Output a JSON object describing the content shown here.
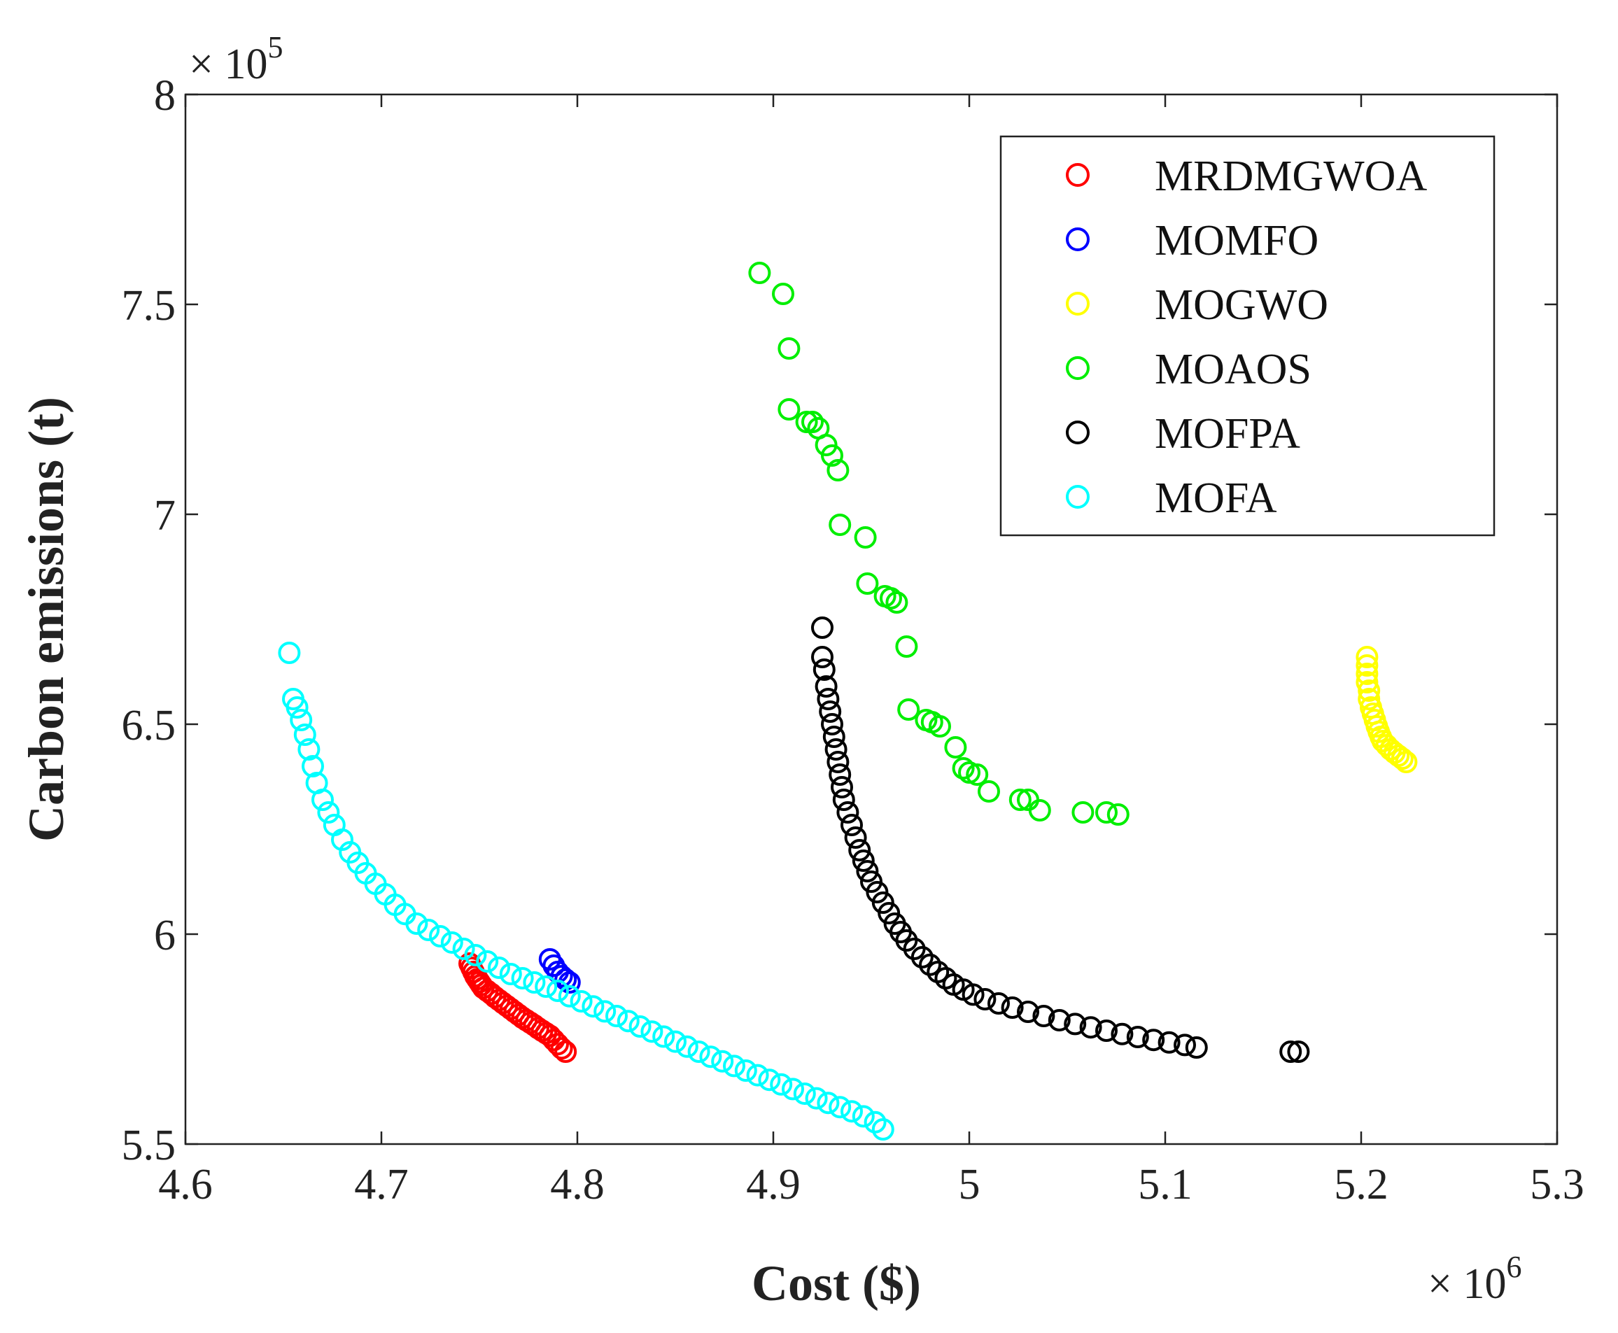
{
  "chart_data": {
    "type": "scatter",
    "title": "",
    "xlabel": "Cost ($)",
    "ylabel": "Carbon emissions (t)",
    "x_exponent_label": "× 10",
    "x_exponent_power": "6",
    "y_exponent_label": "× 10",
    "y_exponent_power": "5",
    "xlim": [
      4.6,
      5.3
    ],
    "ylim": [
      5.5,
      8
    ],
    "xticks": [
      4.6,
      4.7,
      4.8,
      4.9,
      5,
      5.1,
      5.2,
      5.3
    ],
    "yticks": [
      5.5,
      6,
      6.5,
      7,
      7.5,
      8
    ],
    "xtick_labels": [
      "4.6",
      "4.7",
      "4.8",
      "4.9",
      "5",
      "5.1",
      "5.2",
      "5.3"
    ],
    "ytick_labels": [
      "5.5",
      "6",
      "6.5",
      "7",
      "7.5",
      "8"
    ],
    "grid": false,
    "legend_position": "top-right",
    "marker": "open-circle",
    "series": [
      {
        "name": "MRDMGWOA",
        "color": "#ff0000",
        "x": [
          4.745,
          4.746,
          4.747,
          4.748,
          4.749,
          4.75,
          4.751,
          4.752,
          4.754,
          4.756,
          4.758,
          4.76,
          4.762,
          4.764,
          4.766,
          4.768,
          4.77,
          4.772,
          4.774,
          4.776,
          4.778,
          4.78,
          4.782,
          4.784,
          4.786,
          4.788,
          4.79,
          4.792,
          4.794
        ],
        "y": [
          5.93,
          5.92,
          5.91,
          5.9,
          5.893,
          5.886,
          5.879,
          5.872,
          5.865,
          5.858,
          5.85,
          5.843,
          5.836,
          5.829,
          5.822,
          5.815,
          5.808,
          5.801,
          5.795,
          5.789,
          5.783,
          5.776,
          5.77,
          5.764,
          5.758,
          5.748,
          5.738,
          5.728,
          5.72
        ]
      },
      {
        "name": "MOMFO",
        "color": "#0000ff",
        "x": [
          4.786,
          4.788,
          4.79,
          4.792,
          4.794,
          4.796
        ],
        "y": [
          5.94,
          5.925,
          5.91,
          5.9,
          5.892,
          5.885
        ]
      },
      {
        "name": "MOGWO",
        "color": "#ffff00",
        "x": [
          5.203,
          5.203,
          5.203,
          5.203,
          5.204,
          5.204,
          5.205,
          5.206,
          5.207,
          5.208,
          5.209,
          5.21,
          5.211,
          5.213,
          5.215,
          5.217,
          5.219,
          5.221,
          5.223
        ],
        "y": [
          6.66,
          6.64,
          6.62,
          6.6,
          6.58,
          6.56,
          6.54,
          6.525,
          6.51,
          6.495,
          6.482,
          6.47,
          6.46,
          6.45,
          6.44,
          6.432,
          6.425,
          6.418,
          6.41
        ]
      },
      {
        "name": "MOAOS",
        "color": "#00ee00",
        "x": [
          4.893,
          4.905,
          4.908,
          4.908,
          4.917,
          4.92,
          4.923,
          4.927,
          4.93,
          4.933,
          4.934,
          4.947,
          4.948,
          4.957,
          4.96,
          4.963,
          4.968,
          4.969,
          4.978,
          4.981,
          4.985,
          4.993,
          4.997,
          5.0,
          5.004,
          5.01,
          5.026,
          5.03,
          5.036,
          5.058,
          5.07,
          5.076
        ],
        "y": [
          7.575,
          7.525,
          7.395,
          7.25,
          7.22,
          7.22,
          7.205,
          7.165,
          7.14,
          7.105,
          6.975,
          6.945,
          6.835,
          6.805,
          6.8,
          6.79,
          6.685,
          6.535,
          6.51,
          6.505,
          6.495,
          6.445,
          6.395,
          6.385,
          6.38,
          6.34,
          6.32,
          6.32,
          6.295,
          6.29,
          6.29,
          6.285
        ]
      },
      {
        "name": "MOFPA",
        "color": "#000000",
        "x": [
          4.925,
          4.925,
          4.926,
          4.927,
          4.928,
          4.929,
          4.93,
          4.931,
          4.932,
          4.933,
          4.934,
          4.935,
          4.936,
          4.938,
          4.94,
          4.942,
          4.944,
          4.946,
          4.948,
          4.95,
          4.953,
          4.956,
          4.959,
          4.962,
          4.965,
          4.968,
          4.972,
          4.976,
          4.98,
          4.984,
          4.988,
          4.992,
          4.997,
          5.002,
          5.008,
          5.015,
          5.022,
          5.03,
          5.038,
          5.046,
          5.054,
          5.062,
          5.07,
          5.078,
          5.086,
          5.094,
          5.102,
          5.11,
          5.116,
          5.164,
          5.168
        ],
        "y": [
          6.73,
          6.66,
          6.63,
          6.59,
          6.56,
          6.53,
          6.5,
          6.47,
          6.44,
          6.41,
          6.38,
          6.35,
          6.32,
          6.29,
          6.26,
          6.23,
          6.2,
          6.175,
          6.15,
          6.125,
          6.1,
          6.075,
          6.05,
          6.025,
          6.005,
          5.985,
          5.965,
          5.945,
          5.927,
          5.91,
          5.895,
          5.88,
          5.868,
          5.856,
          5.845,
          5.835,
          5.825,
          5.815,
          5.805,
          5.795,
          5.786,
          5.778,
          5.77,
          5.762,
          5.755,
          5.748,
          5.742,
          5.736,
          5.73,
          5.72,
          5.72
        ]
      },
      {
        "name": "MOFA",
        "color": "#00ffff",
        "x": [
          4.653,
          4.655,
          4.657,
          4.659,
          4.661,
          4.663,
          4.665,
          4.667,
          4.67,
          4.673,
          4.676,
          4.68,
          4.684,
          4.688,
          4.692,
          4.697,
          4.702,
          4.707,
          4.712,
          4.718,
          4.724,
          4.73,
          4.736,
          4.742,
          4.748,
          4.754,
          4.76,
          4.766,
          4.772,
          4.778,
          4.784,
          4.79,
          4.796,
          4.802,
          4.808,
          4.814,
          4.82,
          4.826,
          4.832,
          4.838,
          4.844,
          4.85,
          4.856,
          4.862,
          4.868,
          4.874,
          4.88,
          4.886,
          4.892,
          4.898,
          4.904,
          4.91,
          4.916,
          4.922,
          4.928,
          4.934,
          4.94,
          4.946,
          4.952,
          4.956
        ],
        "y": [
          6.67,
          6.56,
          6.54,
          6.51,
          6.475,
          6.44,
          6.4,
          6.36,
          6.32,
          6.29,
          6.26,
          6.225,
          6.195,
          6.17,
          6.145,
          6.12,
          6.095,
          6.07,
          6.048,
          6.025,
          6.01,
          5.995,
          5.98,
          5.965,
          5.95,
          5.935,
          5.92,
          5.905,
          5.895,
          5.885,
          5.875,
          5.865,
          5.852,
          5.84,
          5.828,
          5.816,
          5.805,
          5.793,
          5.78,
          5.768,
          5.756,
          5.744,
          5.732,
          5.72,
          5.708,
          5.697,
          5.686,
          5.675,
          5.664,
          5.653,
          5.642,
          5.631,
          5.62,
          5.609,
          5.598,
          5.588,
          5.578,
          5.566,
          5.552,
          5.535
        ]
      }
    ]
  }
}
